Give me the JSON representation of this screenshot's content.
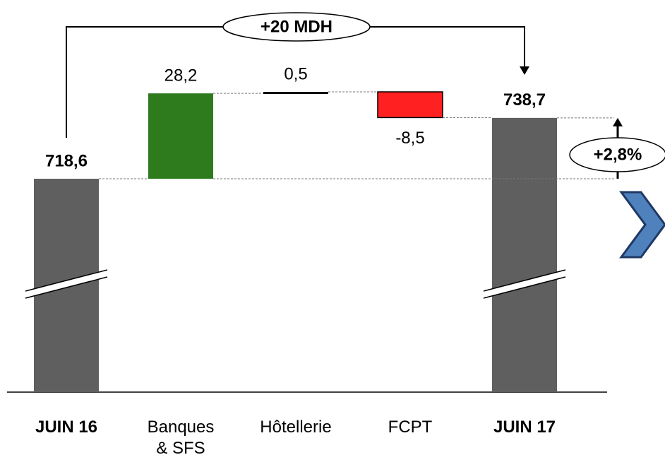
{
  "chart_data": {
    "type": "waterfall",
    "categories": [
      "JUIN 16",
      "Banques & SFS",
      "Hôtellerie",
      "FCPT",
      "JUIN 17"
    ],
    "values": [
      718.6,
      28.2,
      0.5,
      -8.5,
      738.7
    ],
    "value_labels": [
      "718,6",
      "28,2",
      "0,5",
      "-8,5",
      "738,7"
    ],
    "colors": [
      "#5f5f5f",
      "#2e7b1e",
      "#000000",
      "#ff2121",
      "#5f5f5f"
    ],
    "annotations": [
      "+20 MDH",
      "+2,8%"
    ]
  }
}
